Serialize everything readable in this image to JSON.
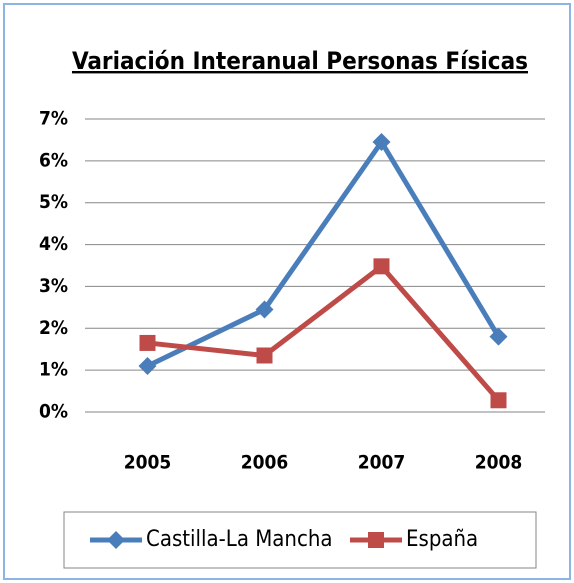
{
  "chart_data": {
    "type": "line",
    "title": "Variación Interanual Personas Físicas",
    "categories": [
      "2005",
      "2006",
      "2007",
      "2008"
    ],
    "series": [
      {
        "name": "Castilla-La Mancha",
        "color": "#4a7ebb",
        "marker": "diamond",
        "values": [
          1.1,
          2.45,
          6.45,
          1.8
        ]
      },
      {
        "name": "España",
        "color": "#be4b48",
        "marker": "square",
        "values": [
          1.65,
          1.35,
          3.48,
          0.28
        ]
      }
    ],
    "ylim": [
      0,
      7
    ],
    "yticks": [
      {
        "value": 0,
        "label": "0%"
      },
      {
        "value": 1,
        "label": "1%"
      },
      {
        "value": 2,
        "label": "2%"
      },
      {
        "value": 3,
        "label": "3%"
      },
      {
        "value": 4,
        "label": "4%"
      },
      {
        "value": 5,
        "label": "5%"
      },
      {
        "value": 6,
        "label": "6%"
      },
      {
        "value": 7,
        "label": "7%"
      }
    ],
    "grid": true,
    "legend": "bottom"
  }
}
